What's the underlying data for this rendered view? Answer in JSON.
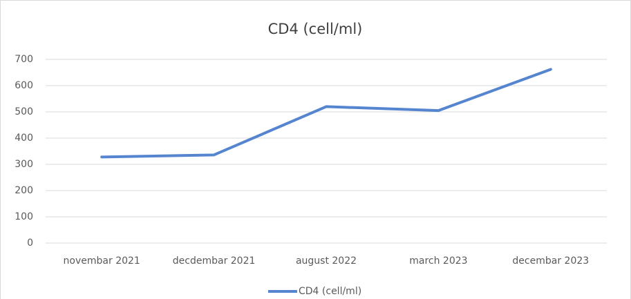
{
  "chart_data": {
    "type": "line",
    "title": "CD4 (cell/ml)",
    "categories": [
      "novembar 2021",
      "decdembar 2021",
      "august 2022",
      "march 2023",
      "decembar 2023"
    ],
    "series": [
      {
        "name": "CD4 (cell/ml)",
        "color": "#5585cf",
        "values": [
          328,
          336,
          520,
          505,
          662
        ]
      }
    ],
    "ylim": [
      0,
      700
    ],
    "yticks": [
      0,
      100,
      200,
      300,
      400,
      500,
      600,
      700
    ],
    "grid": true,
    "legend": "bottom"
  }
}
